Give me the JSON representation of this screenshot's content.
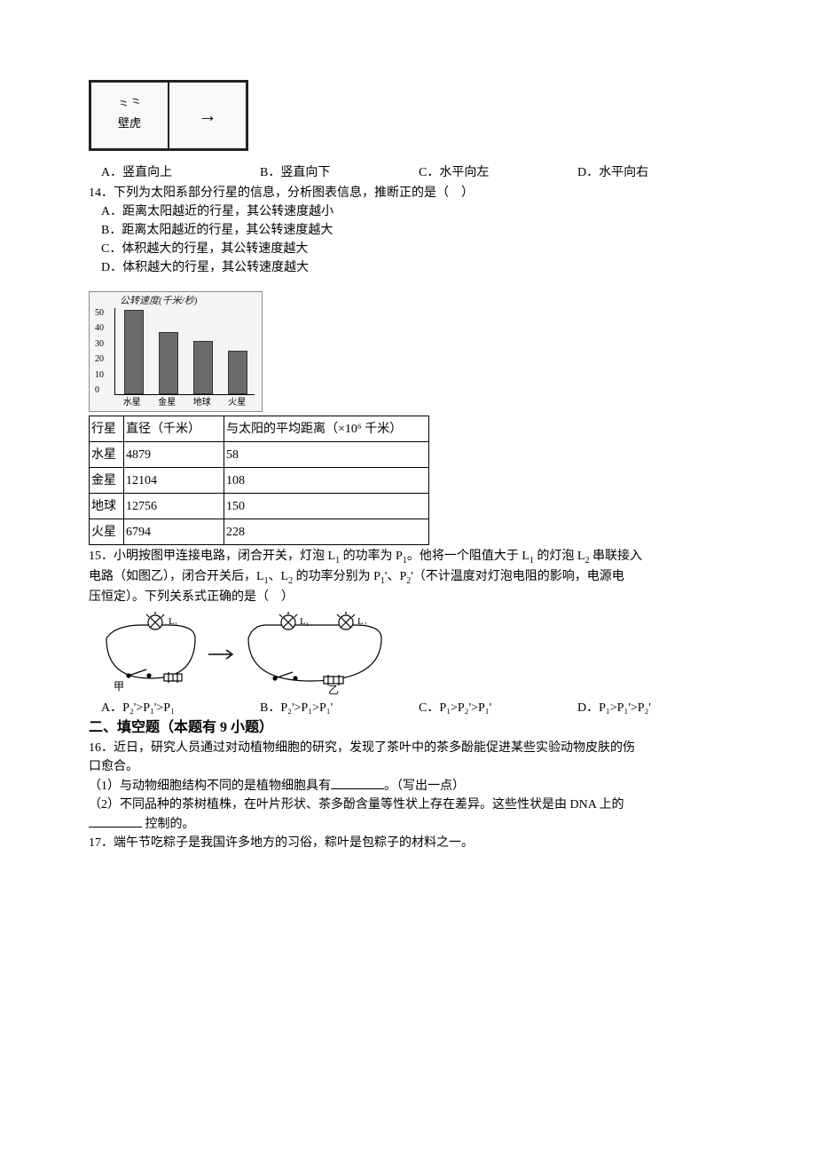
{
  "gecko": {
    "label": "壁虎",
    "scribble": "⺀⺀"
  },
  "q13_options": {
    "a": "A．竖直向上",
    "b": "B．竖直向下",
    "c": "C．水平向左",
    "d": "D．水平向右"
  },
  "q14": {
    "stem": "14．下列为太阳系部分行星的信息，分析图表信息，推断正的是（　）",
    "opts": {
      "a": "A．距离太阳越近的行星，其公转速度越小",
      "b": "B．距离太阳越近的行星，其公转速度越大",
      "c": "C．体积越大的行星，其公转速度越大",
      "d": "D．体积越大的行星，其公转速度越大"
    },
    "chart": {
      "title": "公转速度(千米/秒)",
      "ylim": [
        0,
        50
      ],
      "ytick_step": 10,
      "yticks": [
        "50",
        "40",
        "30",
        "20",
        "10",
        "0"
      ],
      "categories": [
        "水星",
        "金星",
        "地球",
        "火星"
      ],
      "values": [
        48,
        35,
        30,
        24
      ],
      "bar_color": "#6b6b6b",
      "bg": "#f5f5f5"
    },
    "table": {
      "header": [
        "行星",
        "直径（千米）",
        "与太阳的平均距离（×10⁶ 千米）"
      ],
      "rows": [
        [
          "水星",
          "4879",
          "58"
        ],
        [
          "金星",
          "12104",
          "108"
        ],
        [
          "地球",
          "12756",
          "150"
        ],
        [
          "火星",
          "6794",
          "228"
        ]
      ]
    }
  },
  "q15": {
    "stem1": "15．小明按图甲连接电路，闭合开关，灯泡 L",
    "stem1b": " 的功率为 P",
    "stem1c": "。他将一个阻值大于 L",
    "stem1d": " 的灯泡 L",
    "stem1e": " 串联接入",
    "stem2a": "电路（如图乙），闭合开关后，L",
    "stem2b": "、L",
    "stem2c": " 的功率分别为 P",
    "stem2d": "'、P",
    "stem2e": "'（不计温度对灯泡电阻的影响，电源电",
    "stem3": "压恒定）。下列关系式正确的是（　）",
    "opts": {
      "a": "A．P₂'>P₁'>P₁",
      "b": "B．P₂'>P₁>P₁'",
      "c": "C．P₁>P₂'>P₁'",
      "d": "D．P₁>P₁'>P₂'"
    },
    "labels": {
      "L1": "L₁",
      "L2": "L₂",
      "jia": "甲",
      "yi": "乙"
    }
  },
  "section2": "二、填空题（本题有 9 小题）",
  "q16": {
    "stem1": "16．近日，研究人员通过对动植物细胞的研究，发现了茶叶中的茶多酚能促进某些实验动物皮肤的伤",
    "stem2": "口愈合。",
    "p1a": "（1）与动物细胞结构不同的是植物细胞具有",
    "p1b": "。（写出一点）",
    "p2a": "（2）不同品种的茶树植株，在叶片形状、茶多酚含量等性状上存在差异。这些性状是由 DNA 上的",
    "p2b": " 控制的。"
  },
  "q17": {
    "stem": "17．端午节吃粽子是我国许多地方的习俗，粽叶是包粽子的材料之一。"
  }
}
